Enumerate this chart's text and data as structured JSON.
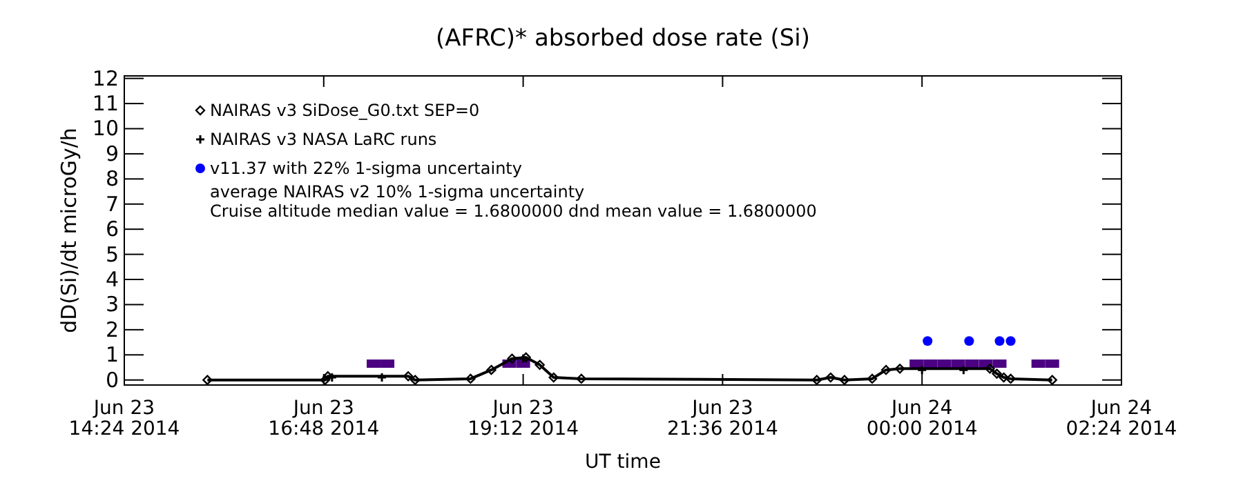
{
  "chart_data": {
    "type": "line",
    "title": "(AFRC)* absorbed dose rate (Si)",
    "xlabel": "UT time",
    "ylabel": "dD(Si)/dt microGy/h",
    "xlim": [
      "2014-06-23T14:24",
      "2014-06-24T02:24"
    ],
    "xticks": [
      {
        "value": "2014-06-23T14:24",
        "label": "Jun 23\n14:24 2014"
      },
      {
        "value": "2014-06-23T16:48",
        "label": "Jun 23\n16:48 2014"
      },
      {
        "value": "2014-06-23T19:12",
        "label": "Jun 23\n19:12 2014"
      },
      {
        "value": "2014-06-23T21:36",
        "label": "Jun 23\n21:36 2014"
      },
      {
        "value": "2014-06-24T00:00",
        "label": "Jun 24\n00:00 2014"
      },
      {
        "value": "2014-06-24T02:24",
        "label": "Jun 24\n02:24 2014"
      }
    ],
    "ylim": [
      -0.2,
      12.1
    ],
    "yticks": [
      0,
      1,
      2,
      3,
      4,
      5,
      6,
      7,
      8,
      9,
      10,
      11,
      12
    ],
    "legend": "top left",
    "grid": false,
    "series": [
      {
        "name": "NAIRAS v3 SiDose_G0.txt SEP=0",
        "type": "line",
        "marker": "diamond",
        "color": "#000000",
        "x": [
          "2014-06-23T15:24",
          "2014-06-23T16:49",
          "2014-06-23T16:51",
          "2014-06-23T17:49",
          "2014-06-23T17:54",
          "2014-06-23T18:34",
          "2014-06-23T18:49",
          "2014-06-23T19:04",
          "2014-06-23T19:14",
          "2014-06-23T19:24",
          "2014-06-23T19:34",
          "2014-06-23T19:54",
          "2014-06-23T22:44",
          "2014-06-23T22:54",
          "2014-06-23T23:04",
          "2014-06-23T23:24",
          "2014-06-23T23:34",
          "2014-06-23T23:44",
          "2014-06-24T00:49",
          "2014-06-24T00:54",
          "2014-06-24T00:59",
          "2014-06-24T01:04",
          "2014-06-24T01:34"
        ],
        "values": [
          0,
          0,
          0.15,
          0.15,
          0,
          0.05,
          0.4,
          0.85,
          0.9,
          0.6,
          0.1,
          0.05,
          0,
          0.1,
          0,
          0.05,
          0.4,
          0.45,
          0.45,
          0.25,
          0.1,
          0.05,
          0
        ]
      },
      {
        "name": "NAIRAS v3 NASA LaRC runs",
        "type": "scatter",
        "marker": "cross",
        "color": "#000000",
        "x": [
          "2014-06-23T16:54",
          "2014-06-23T17:30",
          "2014-06-23T19:12",
          "2014-06-24T00:00",
          "2014-06-24T00:30"
        ],
        "values": [
          0.1,
          0.1,
          0.85,
          0.4,
          0.4
        ]
      },
      {
        "name": "v11.37 with 22% 1-sigma uncertainty",
        "type": "scatter",
        "marker": "circle",
        "color": "#0000ff",
        "x": [
          "2014-06-24T00:04",
          "2014-06-24T00:34",
          "2014-06-24T00:56",
          "2014-06-24T01:04"
        ],
        "values": [
          1.55,
          1.55,
          1.55,
          1.55
        ]
      },
      {
        "type": "scatter",
        "marker": "square",
        "color": "#4b0082",
        "x": [
          "2014-06-23T17:24",
          "2014-06-23T17:34",
          "2014-06-23T19:02",
          "2014-06-23T19:12",
          "2014-06-23T23:56",
          "2014-06-24T00:06",
          "2014-06-24T00:16",
          "2014-06-24T00:26",
          "2014-06-24T00:36",
          "2014-06-24T00:46",
          "2014-06-24T00:56",
          "2014-06-24T01:24",
          "2014-06-24T01:34"
        ],
        "values": [
          0.65,
          0.65,
          0.65,
          0.65,
          0.65,
          0.65,
          0.65,
          0.65,
          0.65,
          0.65,
          0.65,
          0.65,
          0.65
        ]
      }
    ],
    "annotations": [
      "average NAIRAS v2 10% 1-sigma uncertainty",
      "Cruise altitude median value = 1.6800000 dnd mean value = 1.6800000"
    ]
  }
}
